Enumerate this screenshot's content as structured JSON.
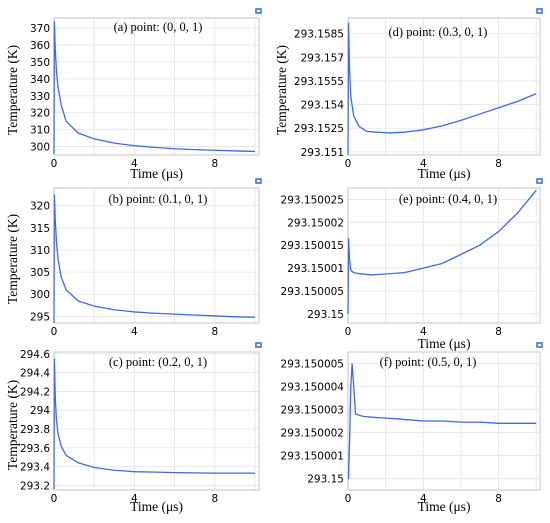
{
  "chart_data": [
    {
      "type": "line",
      "title": "(a) point: (0, 0, 1)",
      "xlabel": "Time (μs)",
      "ylabel": "Temperature (K)",
      "xlim": [
        0,
        10.2
      ],
      "ylim": [
        295,
        376
      ],
      "xticks": [
        {
          "v": 0,
          "label": "0"
        },
        {
          "v": 4,
          "label": "4"
        },
        {
          "v": 8,
          "label": "8"
        }
      ],
      "yticks": [
        {
          "v": 300,
          "label": "300"
        },
        {
          "v": 310,
          "label": "310"
        },
        {
          "v": 320,
          "label": "320"
        },
        {
          "v": 330,
          "label": "330"
        },
        {
          "v": 340,
          "label": "340"
        },
        {
          "v": 350,
          "label": "350"
        },
        {
          "v": 360,
          "label": "360"
        },
        {
          "v": 370,
          "label": "370"
        }
      ],
      "grid": true,
      "x": [
        0,
        0.02,
        0.06,
        0.12,
        0.2,
        0.35,
        0.6,
        1.2,
        2,
        3,
        4,
        5,
        6,
        7,
        8,
        9,
        10
      ],
      "y": [
        295.5,
        374,
        358,
        345,
        335,
        325,
        315,
        308,
        304.5,
        302,
        300.5,
        299.5,
        298.7,
        298.2,
        297.8,
        297.4,
        297.1
      ]
    },
    {
      "type": "line",
      "title": "(b) point: (0.1, 0, 1)",
      "xlabel": "",
      "ylabel": "Temperature (K)",
      "xlim": [
        0,
        10.2
      ],
      "ylim": [
        293.5,
        324
      ],
      "xticks": [
        {
          "v": 0,
          "label": "0"
        },
        {
          "v": 4,
          "label": "4"
        },
        {
          "v": 8,
          "label": "8"
        }
      ],
      "yticks": [
        {
          "v": 295,
          "label": "295"
        },
        {
          "v": 300,
          "label": "300"
        },
        {
          "v": 305,
          "label": "305"
        },
        {
          "v": 310,
          "label": "310"
        },
        {
          "v": 315,
          "label": "315"
        },
        {
          "v": 320,
          "label": "320"
        }
      ],
      "grid": true,
      "x": [
        0,
        0.02,
        0.06,
        0.12,
        0.2,
        0.35,
        0.6,
        1.2,
        2,
        3,
        4,
        5,
        6,
        7,
        8,
        9,
        10
      ],
      "y": [
        293.5,
        322.5,
        317,
        312,
        308,
        304,
        301,
        298.5,
        297.3,
        296.5,
        296,
        295.7,
        295.5,
        295.3,
        295.1,
        294.9,
        294.8
      ]
    },
    {
      "type": "line",
      "title": "(c) point: (0.2, 0, 1)",
      "xlabel": "Time (μs)",
      "ylabel": "Temperature (K)",
      "xlim": [
        0,
        10.2
      ],
      "ylim": [
        293.15,
        294.62
      ],
      "xticks": [
        {
          "v": 0,
          "label": "0"
        },
        {
          "v": 4,
          "label": "4"
        },
        {
          "v": 8,
          "label": "8"
        }
      ],
      "yticks": [
        {
          "v": 293.2,
          "label": "293.2"
        },
        {
          "v": 293.4,
          "label": "293.4"
        },
        {
          "v": 293.6,
          "label": "293.6"
        },
        {
          "v": 293.8,
          "label": "293.8"
        },
        {
          "v": 294.0,
          "label": "294"
        },
        {
          "v": 294.2,
          "label": "294.2"
        },
        {
          "v": 294.4,
          "label": "294.4"
        },
        {
          "v": 294.6,
          "label": "294.6"
        }
      ],
      "grid": true,
      "x": [
        0,
        0.02,
        0.06,
        0.12,
        0.2,
        0.35,
        0.6,
        1.2,
        2,
        3,
        4,
        5,
        6,
        7,
        8,
        9,
        10
      ],
      "y": [
        293.16,
        294.55,
        294.15,
        293.9,
        293.75,
        293.62,
        293.52,
        293.44,
        293.39,
        293.36,
        293.345,
        293.34,
        293.335,
        293.332,
        293.33,
        293.33,
        293.33
      ]
    },
    {
      "type": "line",
      "title": "(d) point: (0.3, 0, 1)",
      "xlabel": "Time (μs)",
      "ylabel": "Temperature (K)",
      "xlim": [
        0,
        10.2
      ],
      "ylim": [
        293.1508,
        293.1595
      ],
      "xticks": [
        {
          "v": 0,
          "label": "0"
        },
        {
          "v": 4,
          "label": "4"
        },
        {
          "v": 8,
          "label": "8"
        }
      ],
      "yticks": [
        {
          "v": 293.151,
          "label": "293.151"
        },
        {
          "v": 293.1525,
          "label": "293.1525"
        },
        {
          "v": 293.154,
          "label": "293.154"
        },
        {
          "v": 293.1555,
          "label": "293.1555"
        },
        {
          "v": 293.157,
          "label": "293.157"
        },
        {
          "v": 293.1585,
          "label": "293.1585"
        }
      ],
      "grid": true,
      "x": [
        0,
        0.03,
        0.08,
        0.15,
        0.3,
        0.6,
        1,
        1.5,
        2.2,
        3,
        4,
        5,
        6,
        7,
        8,
        9,
        10
      ],
      "y": [
        293.1508,
        293.1592,
        293.1563,
        293.1545,
        293.1533,
        293.1526,
        293.1523,
        293.15225,
        293.1522,
        293.15225,
        293.1524,
        293.15265,
        293.153,
        293.1534,
        293.1538,
        293.1542,
        293.1547
      ]
    },
    {
      "type": "line",
      "title": "(e) point: (0.4, 0, 1)",
      "xlabel": "Time (μs)",
      "ylabel": "",
      "xlim": [
        0,
        10.2
      ],
      "ylim": [
        293.149998,
        293.1500275
      ],
      "xticks": [
        {
          "v": 0,
          "label": "0"
        },
        {
          "v": 4,
          "label": "4"
        },
        {
          "v": 8,
          "label": "8"
        }
      ],
      "yticks": [
        {
          "v": 293.15,
          "label": "293.15"
        },
        {
          "v": 293.150005,
          "label": "293.150005"
        },
        {
          "v": 293.15001,
          "label": "293.15001"
        },
        {
          "v": 293.150015,
          "label": "293.150015"
        },
        {
          "v": 293.15002,
          "label": "293.15002"
        },
        {
          "v": 293.150025,
          "label": "293.150025"
        }
      ],
      "grid": true,
      "x": [
        0,
        0.03,
        0.08,
        0.15,
        0.3,
        0.6,
        1.2,
        2,
        3,
        4,
        5,
        6,
        7,
        8,
        9,
        10
      ],
      "y": [
        293.15,
        293.1500165,
        293.150012,
        293.1500095,
        293.150009,
        293.1500088,
        293.1500085,
        293.1500087,
        293.150009,
        293.15001,
        293.150011,
        293.150013,
        293.150015,
        293.150018,
        293.150022,
        293.150027
      ]
    },
    {
      "type": "line",
      "title": "(f) point: (0.5, 0, 1)",
      "xlabel": "Time (μs)",
      "ylabel": "",
      "xlim": [
        0,
        10.2
      ],
      "ylim": [
        293.1499995,
        293.1500055
      ],
      "xticks": [
        {
          "v": 0,
          "label": "0"
        },
        {
          "v": 4,
          "label": "4"
        },
        {
          "v": 8,
          "label": "8"
        }
      ],
      "yticks": [
        {
          "v": 293.15,
          "label": "293.15"
        },
        {
          "v": 293.150001,
          "label": "293.150001"
        },
        {
          "v": 293.150002,
          "label": "293.150002"
        },
        {
          "v": 293.150003,
          "label": "293.150003"
        },
        {
          "v": 293.150004,
          "label": "293.150004"
        },
        {
          "v": 293.150005,
          "label": "293.150005"
        }
      ],
      "grid": true,
      "x": [
        0,
        0.03,
        0.08,
        0.15,
        0.22,
        0.4,
        0.8,
        1.5,
        2.5,
        4,
        5,
        6,
        7,
        8,
        9,
        10
      ],
      "y": [
        293.15,
        293.15,
        293.1500015,
        293.150004,
        293.150005,
        293.1500028,
        293.1500027,
        293.15000265,
        293.1500026,
        293.1500025,
        293.1500025,
        293.15000245,
        293.15000245,
        293.1500024,
        293.1500024,
        293.1500024
      ]
    }
  ]
}
